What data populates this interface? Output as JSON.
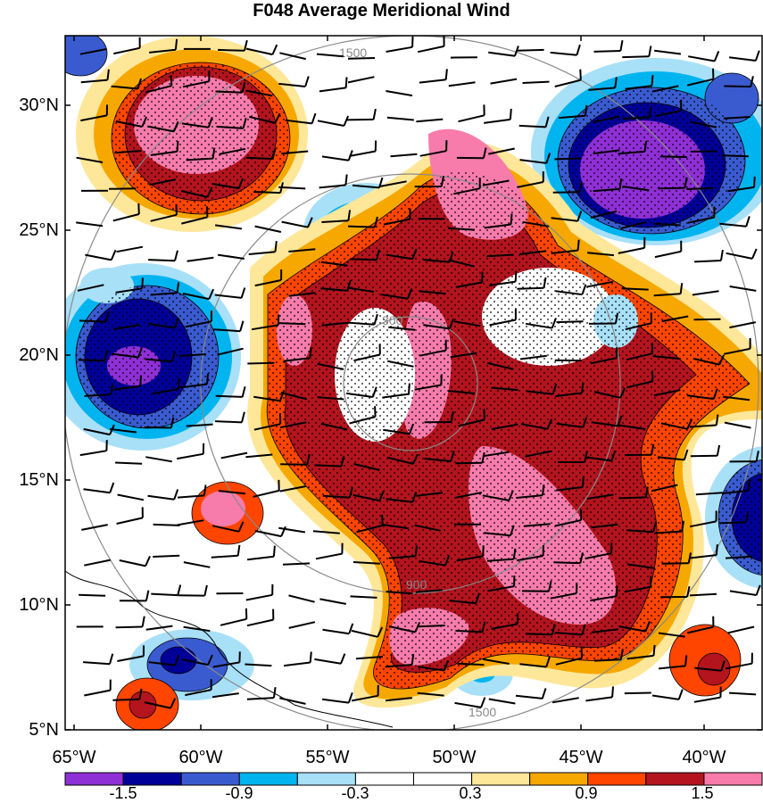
{
  "title": "F048 Average Meridional Wind",
  "colors": {
    "palette": [
      "#8f2fd6",
      "#000099",
      "#3a5bd0",
      "#00b4f0",
      "#a8e0f8",
      "#ffffff",
      "#ffffff",
      "#ffe79a",
      "#f7a800",
      "#ff4500",
      "#b3141e",
      "#f77cab"
    ],
    "ring_contour": "#8a8a8a",
    "barb": "#000000",
    "coast": "#000000"
  },
  "colorbar": {
    "labels": [
      "-1.5",
      "-0.9",
      "-0.3",
      "0.3",
      "0.9",
      "1.5"
    ]
  },
  "axes": {
    "x_ticks": [
      "65°W",
      "60°W",
      "55°W",
      "50°W",
      "45°W",
      "40°W"
    ],
    "y_ticks": [
      "30°N",
      "25°N",
      "20°N",
      "15°N",
      "10°N",
      "5°N"
    ],
    "lon_range": [
      -65,
      -37.5
    ],
    "lat_range": [
      5,
      33
    ]
  },
  "ring_contours": {
    "labels": [
      "300",
      "900",
      "1500"
    ]
  }
}
